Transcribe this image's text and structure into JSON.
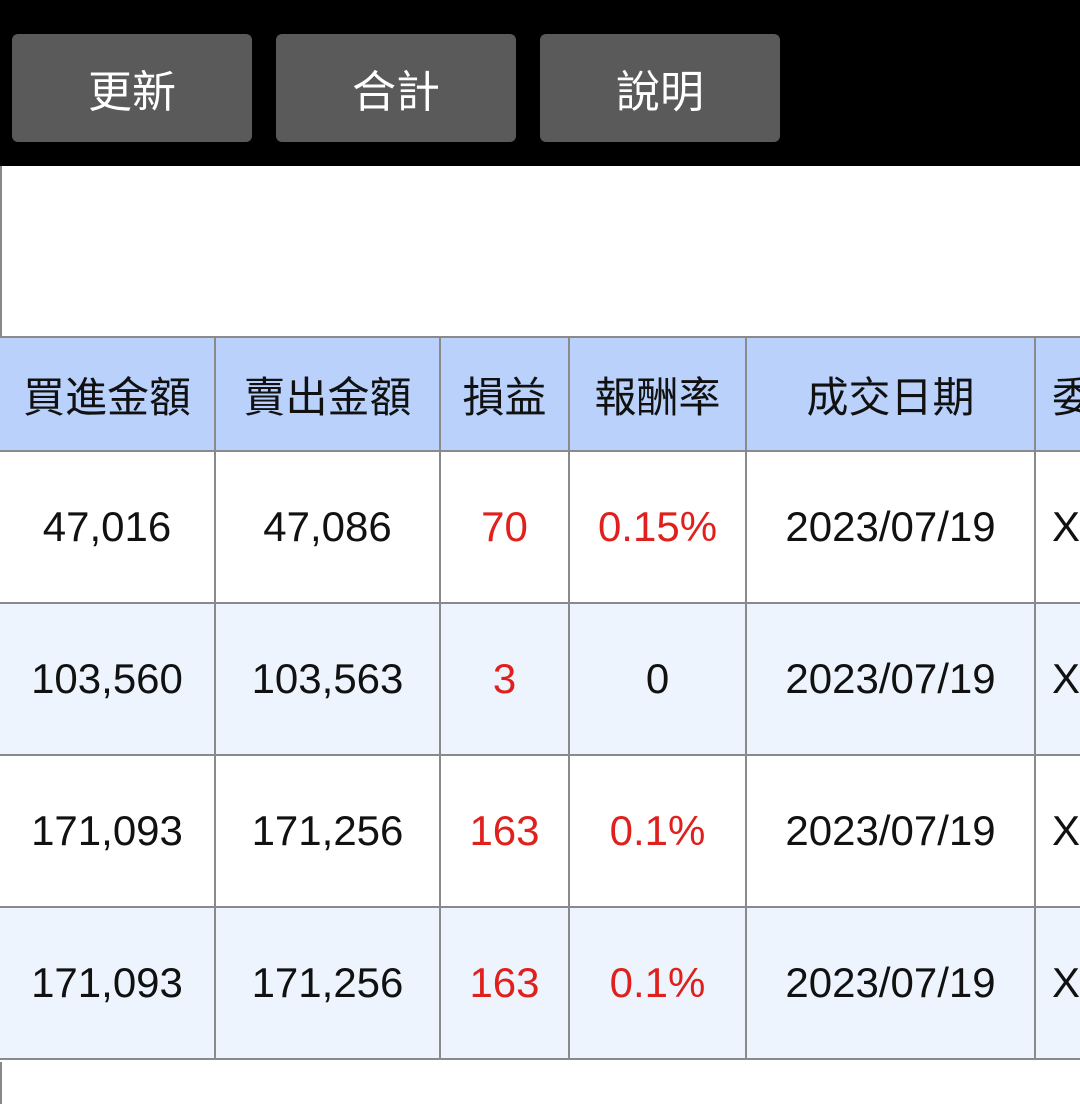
{
  "toolbar": {
    "buttons": [
      "更新",
      "合計",
      "說明"
    ]
  },
  "table": {
    "headers": [
      "買進金額",
      "賣出金額",
      "損益",
      "報酬率",
      "成交日期",
      "委"
    ],
    "rows": [
      {
        "buy": "47,016",
        "sell": "47,086",
        "pl": "70",
        "rate": "0.15%",
        "date": "2023/07/19",
        "more": "X",
        "pl_positive": true,
        "rate_positive": true
      },
      {
        "buy": "103,560",
        "sell": "103,563",
        "pl": "3",
        "rate": "0",
        "date": "2023/07/19",
        "more": "X",
        "pl_positive": true,
        "rate_positive": false
      },
      {
        "buy": "171,093",
        "sell": "171,256",
        "pl": "163",
        "rate": "0.1%",
        "date": "2023/07/19",
        "more": "X",
        "pl_positive": true,
        "rate_positive": true
      },
      {
        "buy": "171,093",
        "sell": "171,256",
        "pl": "163",
        "rate": "0.1%",
        "date": "2023/07/19",
        "more": "X",
        "pl_positive": true,
        "rate_positive": true
      }
    ]
  },
  "colors": {
    "header_bg": "#b9d1fb",
    "alt_row_bg": "#eef4fd",
    "positive": "#e0201c",
    "toolbar_bg": "#000000",
    "button_bg": "#5a5a5a"
  }
}
